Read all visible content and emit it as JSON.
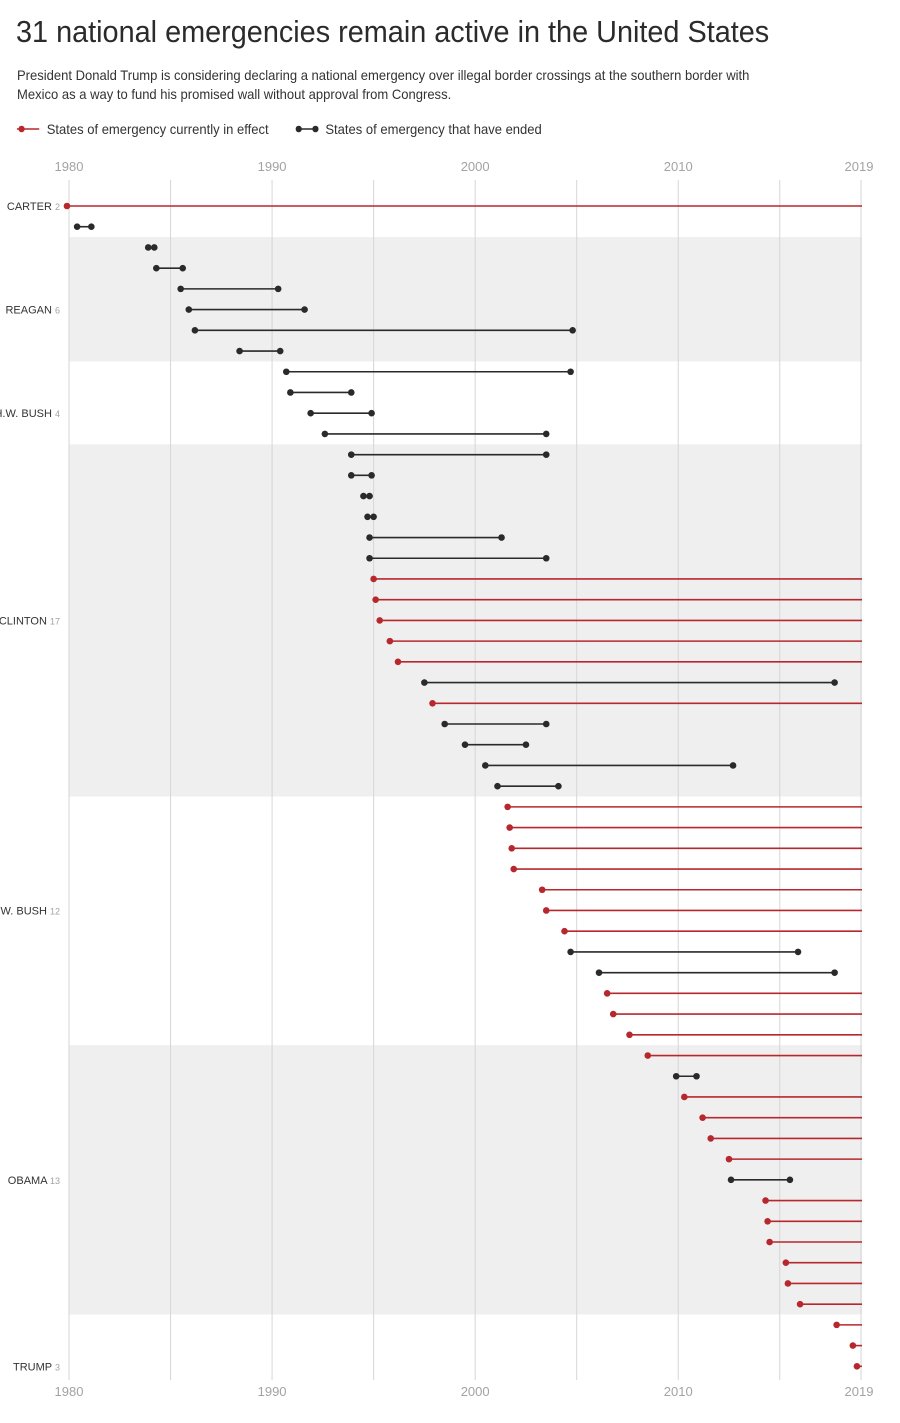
{
  "title": "31 national emergencies remain active in the United States",
  "subtitle": "President Donald Trump is considering declaring a national emergency over illegal border crossings at the southern border with Mexico as a way to fund his promised wall without approval from Congress.",
  "legend": {
    "active_label": "States of emergency currently in effect",
    "ended_label": "States of emergency that have ended"
  },
  "colors": {
    "active": "#b7282e",
    "ended": "#2a2a2a",
    "band": "#efefef",
    "grid": "#d6d6d6"
  },
  "chart_data": {
    "type": "timeline",
    "title": "31 national emergencies remain active in the United States",
    "xlim": [
      1980,
      2019
    ],
    "x_ticks": [
      1980,
      1990,
      2000,
      2010,
      2019
    ],
    "legend_position": "top-left",
    "presidents": [
      {
        "name": "CARTER",
        "count": "2",
        "label_row": 0,
        "rows": [
          0,
          1
        ],
        "shaded": false
      },
      {
        "name": "REAGAN",
        "count": "6",
        "label_row": 5,
        "rows": [
          2,
          7
        ],
        "shaded": true
      },
      {
        "name": "H.W. BUSH",
        "count": "4",
        "label_row": 10,
        "rows": [
          8,
          11
        ],
        "shaded": false
      },
      {
        "name": "CLINTON",
        "count": "17",
        "label_row": 20,
        "rows": [
          12,
          28
        ],
        "shaded": true
      },
      {
        "name": "W. BUSH",
        "count": "12",
        "label_row": 34,
        "rows": [
          29,
          40
        ],
        "shaded": false
      },
      {
        "name": "OBAMA",
        "count": "13",
        "label_row": 47,
        "rows": [
          41,
          53
        ],
        "shaded": true
      },
      {
        "name": "TRUMP",
        "count": "3",
        "label_row": 56,
        "rows": [
          54,
          56
        ],
        "shaded": false
      }
    ],
    "emergencies": [
      {
        "start": 1979.9,
        "end": null
      },
      {
        "start": 1980.4,
        "end": 1981.1
      },
      {
        "start": 1983.9,
        "end": 1984.2
      },
      {
        "start": 1984.3,
        "end": 1985.6
      },
      {
        "start": 1985.5,
        "end": 1990.3
      },
      {
        "start": 1985.9,
        "end": 1991.6
      },
      {
        "start": 1986.2,
        "end": 2004.8
      },
      {
        "start": 1988.4,
        "end": 1990.4
      },
      {
        "start": 1990.7,
        "end": 2004.7
      },
      {
        "start": 1990.9,
        "end": 1993.9
      },
      {
        "start": 1991.9,
        "end": 1994.9
      },
      {
        "start": 1992.6,
        "end": 2003.5
      },
      {
        "start": 1993.9,
        "end": 2003.5
      },
      {
        "start": 1993.9,
        "end": 1994.9
      },
      {
        "start": 1994.5,
        "end": 1994.8
      },
      {
        "start": 1994.7,
        "end": 1995.0
      },
      {
        "start": 1994.8,
        "end": 2001.3
      },
      {
        "start": 1994.8,
        "end": 2003.5
      },
      {
        "start": 1995.0,
        "end": null
      },
      {
        "start": 1995.1,
        "end": null
      },
      {
        "start": 1995.3,
        "end": null
      },
      {
        "start": 1995.8,
        "end": null
      },
      {
        "start": 1996.2,
        "end": null
      },
      {
        "start": 1997.5,
        "end": 2017.7
      },
      {
        "start": 1997.9,
        "end": null
      },
      {
        "start": 1998.5,
        "end": 2003.5
      },
      {
        "start": 1999.5,
        "end": 2002.5
      },
      {
        "start": 2000.5,
        "end": 2012.7
      },
      {
        "start": 2001.1,
        "end": 2004.1
      },
      {
        "start": 2001.6,
        "end": null
      },
      {
        "start": 2001.7,
        "end": null
      },
      {
        "start": 2001.8,
        "end": null
      },
      {
        "start": 2001.9,
        "end": null
      },
      {
        "start": 2003.3,
        "end": null
      },
      {
        "start": 2003.5,
        "end": null
      },
      {
        "start": 2004.4,
        "end": null
      },
      {
        "start": 2004.7,
        "end": 2015.9
      },
      {
        "start": 2006.1,
        "end": 2017.7
      },
      {
        "start": 2006.5,
        "end": null
      },
      {
        "start": 2006.8,
        "end": null
      },
      {
        "start": 2007.6,
        "end": null
      },
      {
        "start": 2008.5,
        "end": null
      },
      {
        "start": 2009.9,
        "end": 2010.9
      },
      {
        "start": 2010.3,
        "end": null
      },
      {
        "start": 2011.2,
        "end": null
      },
      {
        "start": 2011.6,
        "end": null
      },
      {
        "start": 2012.5,
        "end": null
      },
      {
        "start": 2012.6,
        "end": 2015.5
      },
      {
        "start": 2014.3,
        "end": null
      },
      {
        "start": 2014.4,
        "end": null
      },
      {
        "start": 2014.5,
        "end": null
      },
      {
        "start": 2015.3,
        "end": null
      },
      {
        "start": 2015.4,
        "end": null
      },
      {
        "start": 2016.0,
        "end": null
      },
      {
        "start": 2017.8,
        "end": null
      },
      {
        "start": 2018.6,
        "end": null
      },
      {
        "start": 2018.8,
        "end": null
      }
    ]
  }
}
